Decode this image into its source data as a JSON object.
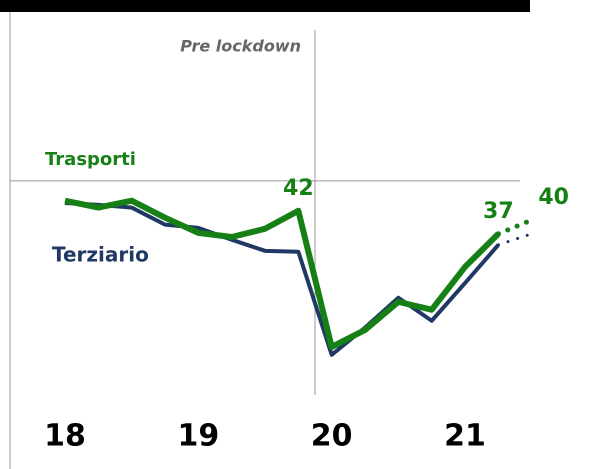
{
  "chart_data": {
    "type": "line",
    "x": [
      2018,
      2018.25,
      2018.5,
      2018.75,
      2019,
      2019.25,
      2019.5,
      2019.75,
      2020,
      2020.25,
      2020.5,
      2020.75,
      2021,
      2021.25,
      2021.5
    ],
    "series": [
      {
        "name": "Terziario",
        "color": "#1f3864",
        "values": [
          43.7,
          43.3,
          42.7,
          39,
          38.3,
          35.7,
          33.3,
          33.1,
          10.7,
          16.6,
          23.1,
          18.1,
          26.3,
          34.6,
          37
        ]
      },
      {
        "name": "Trasporti",
        "color": "#168016",
        "values": [
          44.2,
          42.7,
          44.2,
          40.5,
          37.2,
          36.3,
          38.1,
          42,
          12.4,
          16.1,
          22.2,
          20.5,
          29.8,
          37,
          40
        ],
        "value_labels": [
          null,
          null,
          null,
          null,
          null,
          null,
          null,
          "42",
          null,
          null,
          null,
          null,
          null,
          "37",
          "40"
        ]
      }
    ],
    "forecast_start": 2021.25,
    "xlim": [
      2018,
      2021.5
    ],
    "xticks": [
      {
        "value": 2018,
        "label": "18"
      },
      {
        "value": 2019,
        "label": "19"
      },
      {
        "value": 2020,
        "label": "20"
      },
      {
        "value": 2021,
        "label": "21"
      }
    ],
    "ylim": [
      0,
      80
    ],
    "reference_y": 48.5,
    "annotation": {
      "text": "Pre lockdown",
      "x": 2019.875
    }
  }
}
